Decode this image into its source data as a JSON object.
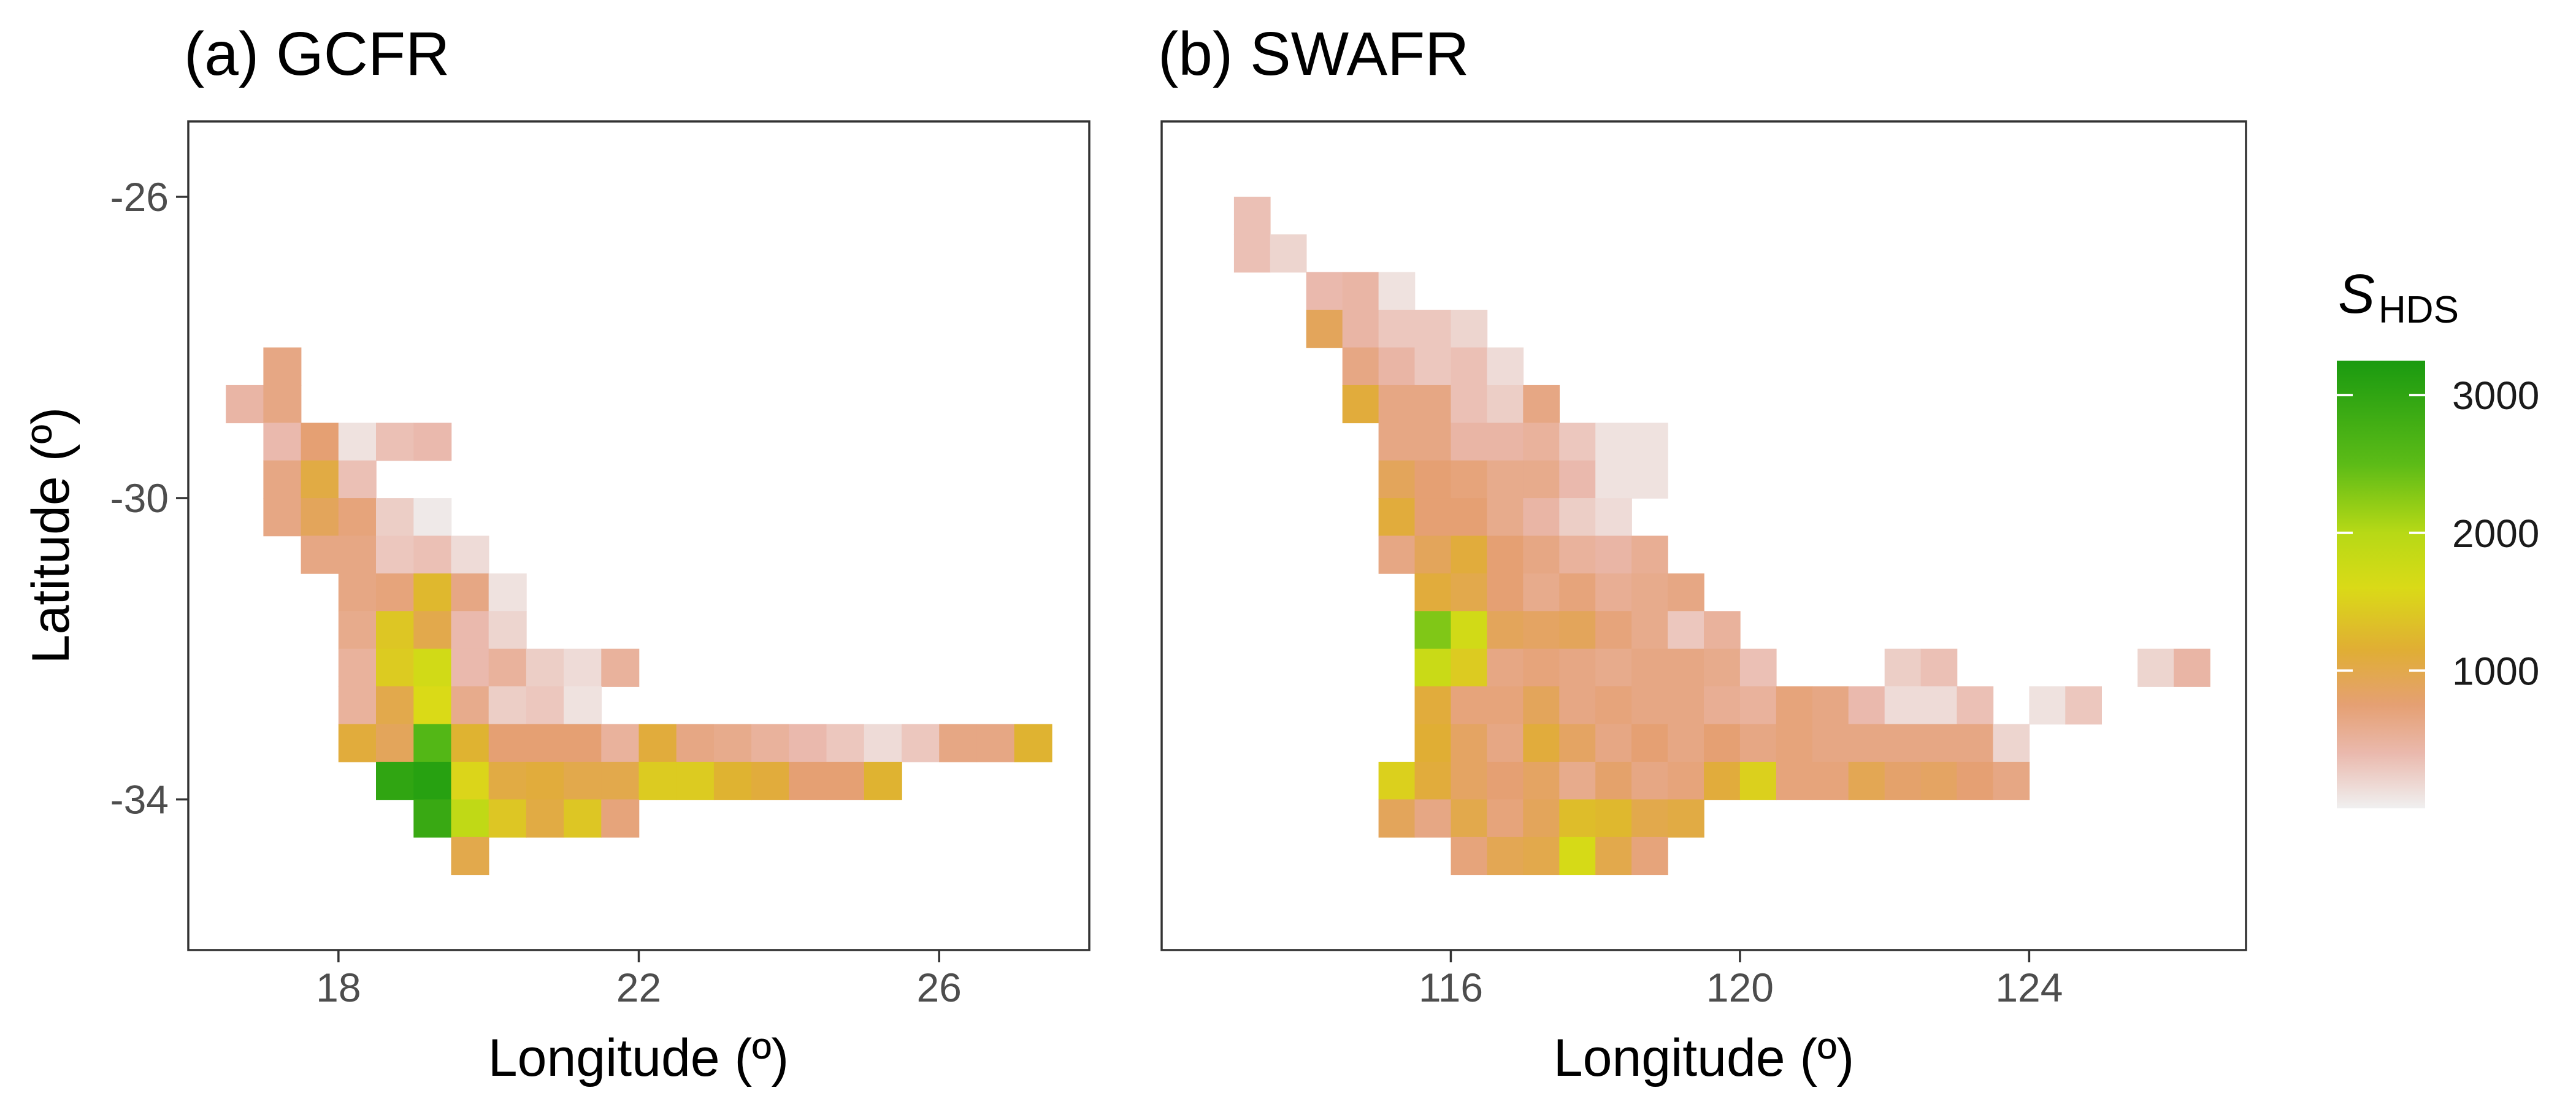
{
  "chart_data": [
    {
      "type": "heatmap",
      "title": "(a) GCFR",
      "xlabel": "Longitude (º)",
      "ylabel": "Latitude (º)",
      "xlim": [
        16.0,
        28.0
      ],
      "ylim": [
        -36.0,
        -25.0
      ],
      "xticks": [
        18,
        22,
        26
      ],
      "yticks": [
        -26,
        -30,
        -34
      ],
      "xtick_labels": [
        "18",
        "22",
        "26"
      ],
      "ytick_labels": [
        "-26",
        "-30",
        "-34"
      ],
      "grid": false,
      "cell_size_deg": 0.5,
      "cell_note": "each cell: [lon_min, lat_max, S_HDS] (0.5 degree squares)",
      "cells": [
        [
          17.0,
          -28.0,
          650
        ],
        [
          16.5,
          -28.5,
          450
        ],
        [
          17.0,
          -28.5,
          650
        ],
        [
          17.0,
          -29.0,
          400
        ],
        [
          17.5,
          -29.0,
          750
        ],
        [
          18.0,
          -29.0,
          100
        ],
        [
          18.5,
          -29.0,
          350
        ],
        [
          19.0,
          -29.0,
          400
        ],
        [
          17.0,
          -29.5,
          650
        ],
        [
          17.5,
          -29.5,
          1050
        ],
        [
          18.0,
          -29.5,
          350
        ],
        [
          17.0,
          -30.0,
          650
        ],
        [
          17.5,
          -30.0,
          900
        ],
        [
          18.0,
          -30.0,
          700
        ],
        [
          18.5,
          -30.0,
          250
        ],
        [
          19.0,
          -30.0,
          50
        ],
        [
          17.5,
          -30.5,
          650
        ],
        [
          18.0,
          -30.5,
          650
        ],
        [
          18.5,
          -30.5,
          300
        ],
        [
          19.0,
          -30.5,
          350
        ],
        [
          19.5,
          -30.5,
          150
        ],
        [
          18.0,
          -31.0,
          650
        ],
        [
          18.5,
          -31.0,
          700
        ],
        [
          19.0,
          -31.0,
          1250
        ],
        [
          19.5,
          -31.0,
          650
        ],
        [
          20.0,
          -31.0,
          100
        ],
        [
          18.0,
          -31.5,
          600
        ],
        [
          18.5,
          -31.5,
          1400
        ],
        [
          19.0,
          -31.5,
          1000
        ],
        [
          19.5,
          -31.5,
          400
        ],
        [
          20.0,
          -31.5,
          200
        ],
        [
          18.0,
          -32.0,
          500
        ],
        [
          18.5,
          -32.0,
          1450
        ],
        [
          19.0,
          -32.0,
          1700
        ],
        [
          19.5,
          -32.0,
          400
        ],
        [
          20.0,
          -32.0,
          500
        ],
        [
          20.5,
          -32.0,
          250
        ],
        [
          21.0,
          -32.0,
          150
        ],
        [
          21.5,
          -32.0,
          500
        ],
        [
          18.0,
          -32.5,
          500
        ],
        [
          18.5,
          -32.5,
          1000
        ],
        [
          19.0,
          -32.5,
          1600
        ],
        [
          19.5,
          -32.5,
          600
        ],
        [
          20.0,
          -32.5,
          250
        ],
        [
          20.5,
          -32.5,
          300
        ],
        [
          21.0,
          -32.5,
          100
        ],
        [
          18.0,
          -33.0,
          1100
        ],
        [
          18.5,
          -33.0,
          900
        ],
        [
          19.0,
          -33.0,
          2600
        ],
        [
          19.5,
          -33.0,
          1200
        ],
        [
          20.0,
          -33.0,
          750
        ],
        [
          20.5,
          -33.0,
          750
        ],
        [
          21.0,
          -33.0,
          750
        ],
        [
          21.5,
          -33.0,
          500
        ],
        [
          22.0,
          -33.0,
          1100
        ],
        [
          22.5,
          -33.0,
          650
        ],
        [
          23.0,
          -33.0,
          600
        ],
        [
          23.5,
          -33.0,
          500
        ],
        [
          24.0,
          -33.0,
          400
        ],
        [
          24.5,
          -33.0,
          300
        ],
        [
          25.0,
          -33.0,
          150
        ],
        [
          25.5,
          -33.0,
          300
        ],
        [
          26.0,
          -33.0,
          650
        ],
        [
          26.5,
          -33.0,
          650
        ],
        [
          27.0,
          -33.0,
          1200
        ],
        [
          18.5,
          -33.5,
          3000
        ],
        [
          19.0,
          -33.5,
          3100
        ],
        [
          19.5,
          -33.5,
          1550
        ],
        [
          20.0,
          -33.5,
          1050
        ],
        [
          20.5,
          -33.5,
          1100
        ],
        [
          21.0,
          -33.5,
          1000
        ],
        [
          21.5,
          -33.5,
          1000
        ],
        [
          22.0,
          -33.5,
          1450
        ],
        [
          22.5,
          -33.5,
          1450
        ],
        [
          23.0,
          -33.5,
          1200
        ],
        [
          23.5,
          -33.5,
          1100
        ],
        [
          24.0,
          -33.5,
          750
        ],
        [
          24.5,
          -33.5,
          750
        ],
        [
          25.0,
          -33.5,
          1200
        ],
        [
          19.0,
          -34.0,
          2900
        ],
        [
          19.5,
          -34.0,
          1900
        ],
        [
          20.0,
          -34.0,
          1400
        ],
        [
          20.5,
          -34.0,
          1050
        ],
        [
          21.0,
          -34.0,
          1400
        ],
        [
          21.5,
          -34.0,
          700
        ],
        [
          19.5,
          -34.5,
          1000
        ]
      ]
    },
    {
      "type": "heatmap",
      "title": "(b) SWAFR",
      "xlabel": "Longitude (º)",
      "ylabel": "",
      "xlim": [
        112.0,
        127.0
      ],
      "ylim": [
        -36.0,
        -25.0
      ],
      "xticks": [
        116,
        120,
        124
      ],
      "yticks": [],
      "xtick_labels": [
        "116",
        "120",
        "124"
      ],
      "ytick_labels": [],
      "grid": false,
      "cell_size_deg": 0.5,
      "cell_note": "each cell: [lon_min, lat_max, S_HDS] (0.5 degree squares)",
      "cells": [
        [
          113.0,
          -26.0,
          350
        ],
        [
          113.0,
          -26.5,
          350
        ],
        [
          113.5,
          -26.5,
          200
        ],
        [
          114.0,
          -27.0,
          400
        ],
        [
          114.5,
          -27.0,
          450
        ],
        [
          115.0,
          -27.0,
          100
        ],
        [
          114.0,
          -27.5,
          900
        ],
        [
          114.5,
          -27.5,
          450
        ],
        [
          115.0,
          -27.5,
          300
        ],
        [
          115.5,
          -27.5,
          300
        ],
        [
          116.0,
          -27.5,
          200
        ],
        [
          114.5,
          -28.0,
          650
        ],
        [
          115.0,
          -28.0,
          450
        ],
        [
          115.5,
          -28.0,
          300
        ],
        [
          116.0,
          -28.0,
          350
        ],
        [
          116.5,
          -28.0,
          150
        ],
        [
          114.5,
          -28.5,
          1100
        ],
        [
          115.0,
          -28.5,
          650
        ],
        [
          115.5,
          -28.5,
          650
        ],
        [
          116.0,
          -28.5,
          350
        ],
        [
          116.5,
          -28.5,
          250
        ],
        [
          117.0,
          -28.5,
          650
        ],
        [
          115.0,
          -29.0,
          650
        ],
        [
          115.5,
          -29.0,
          650
        ],
        [
          116.0,
          -29.0,
          450
        ],
        [
          116.5,
          -29.0,
          450
        ],
        [
          117.0,
          -29.0,
          500
        ],
        [
          117.5,
          -29.0,
          300
        ],
        [
          118.0,
          -29.0,
          100
        ],
        [
          118.5,
          -29.0,
          100
        ],
        [
          115.0,
          -29.5,
          900
        ],
        [
          115.5,
          -29.5,
          750
        ],
        [
          116.0,
          -29.5,
          700
        ],
        [
          116.5,
          -29.5,
          600
        ],
        [
          117.0,
          -29.5,
          600
        ],
        [
          117.5,
          -29.5,
          400
        ],
        [
          118.0,
          -29.5,
          100
        ],
        [
          118.5,
          -29.5,
          100
        ],
        [
          115.0,
          -30.0,
          1100
        ],
        [
          115.5,
          -30.0,
          750
        ],
        [
          116.0,
          -30.0,
          750
        ],
        [
          116.5,
          -30.0,
          600
        ],
        [
          117.0,
          -30.0,
          450
        ],
        [
          117.5,
          -30.0,
          250
        ],
        [
          118.0,
          -30.0,
          150
        ],
        [
          115.0,
          -30.5,
          650
        ],
        [
          115.5,
          -30.5,
          900
        ],
        [
          116.0,
          -30.5,
          1100
        ],
        [
          116.5,
          -30.5,
          750
        ],
        [
          117.0,
          -30.5,
          650
        ],
        [
          117.5,
          -30.5,
          500
        ],
        [
          118.0,
          -30.5,
          450
        ],
        [
          118.5,
          -30.5,
          550
        ],
        [
          115.5,
          -31.0,
          1100
        ],
        [
          116.0,
          -31.0,
          1000
        ],
        [
          116.5,
          -31.0,
          750
        ],
        [
          117.0,
          -31.0,
          600
        ],
        [
          117.5,
          -31.0,
          700
        ],
        [
          118.0,
          -31.0,
          550
        ],
        [
          118.5,
          -31.0,
          600
        ],
        [
          119.0,
          -31.0,
          650
        ],
        [
          115.5,
          -31.5,
          2300
        ],
        [
          116.0,
          -31.5,
          1700
        ],
        [
          116.5,
          -31.5,
          900
        ],
        [
          117.0,
          -31.5,
          850
        ],
        [
          117.5,
          -31.5,
          900
        ],
        [
          118.0,
          -31.5,
          700
        ],
        [
          118.5,
          -31.5,
          600
        ],
        [
          119.0,
          -31.5,
          300
        ],
        [
          119.5,
          -31.5,
          500
        ],
        [
          115.5,
          -32.0,
          1800
        ],
        [
          116.0,
          -32.0,
          1450
        ],
        [
          116.5,
          -32.0,
          650
        ],
        [
          117.0,
          -32.0,
          700
        ],
        [
          117.5,
          -32.0,
          650
        ],
        [
          118.0,
          -32.0,
          600
        ],
        [
          118.5,
          -32.0,
          650
        ],
        [
          119.0,
          -32.0,
          650
        ],
        [
          119.5,
          -32.0,
          600
        ],
        [
          120.0,
          -32.0,
          350
        ],
        [
          122.0,
          -32.0,
          250
        ],
        [
          122.5,
          -32.0,
          350
        ],
        [
          125.5,
          -32.0,
          200
        ],
        [
          126.0,
          -32.0,
          450
        ],
        [
          115.5,
          -32.5,
          1100
        ],
        [
          116.0,
          -32.5,
          700
        ],
        [
          116.5,
          -32.5,
          700
        ],
        [
          117.0,
          -32.5,
          900
        ],
        [
          117.5,
          -32.5,
          650
        ],
        [
          118.0,
          -32.5,
          700
        ],
        [
          118.5,
          -32.5,
          650
        ],
        [
          119.0,
          -32.5,
          650
        ],
        [
          119.5,
          -32.5,
          550
        ],
        [
          120.0,
          -32.5,
          500
        ],
        [
          120.5,
          -32.5,
          700
        ],
        [
          121.0,
          -32.5,
          650
        ],
        [
          121.5,
          -32.5,
          400
        ],
        [
          122.0,
          -32.5,
          150
        ],
        [
          122.5,
          -32.5,
          150
        ],
        [
          123.0,
          -32.5,
          350
        ],
        [
          124.0,
          -32.5,
          100
        ],
        [
          124.5,
          -32.5,
          300
        ],
        [
          115.5,
          -33.0,
          1150
        ],
        [
          116.0,
          -33.0,
          850
        ],
        [
          116.5,
          -33.0,
          650
        ],
        [
          117.0,
          -33.0,
          1100
        ],
        [
          117.5,
          -33.0,
          850
        ],
        [
          118.0,
          -33.0,
          650
        ],
        [
          118.5,
          -33.0,
          750
        ],
        [
          119.0,
          -33.0,
          650
        ],
        [
          119.5,
          -33.0,
          750
        ],
        [
          120.0,
          -33.0,
          650
        ],
        [
          120.5,
          -33.0,
          700
        ],
        [
          121.0,
          -33.0,
          650
        ],
        [
          121.5,
          -33.0,
          650
        ],
        [
          122.0,
          -33.0,
          650
        ],
        [
          122.5,
          -33.0,
          650
        ],
        [
          123.0,
          -33.0,
          650
        ],
        [
          123.5,
          -33.0,
          200
        ],
        [
          115.0,
          -33.5,
          1500
        ],
        [
          115.5,
          -33.5,
          1100
        ],
        [
          116.0,
          -33.5,
          850
        ],
        [
          116.5,
          -33.5,
          750
        ],
        [
          117.0,
          -33.5,
          850
        ],
        [
          117.5,
          -33.5,
          600
        ],
        [
          118.0,
          -33.5,
          800
        ],
        [
          118.5,
          -33.5,
          650
        ],
        [
          119.0,
          -33.5,
          700
        ],
        [
          119.5,
          -33.5,
          1100
        ],
        [
          120.0,
          -33.5,
          1500
        ],
        [
          120.5,
          -33.5,
          700
        ],
        [
          121.0,
          -33.5,
          700
        ],
        [
          121.5,
          -33.5,
          950
        ],
        [
          122.0,
          -33.5,
          800
        ],
        [
          122.5,
          -33.5,
          850
        ],
        [
          123.0,
          -33.5,
          750
        ],
        [
          123.5,
          -33.5,
          650
        ],
        [
          115.0,
          -34.0,
          900
        ],
        [
          115.5,
          -34.0,
          650
        ],
        [
          116.0,
          -34.0,
          1000
        ],
        [
          116.5,
          -34.0,
          700
        ],
        [
          117.0,
          -34.0,
          900
        ],
        [
          117.5,
          -34.0,
          1300
        ],
        [
          118.0,
          -34.0,
          1250
        ],
        [
          118.5,
          -34.0,
          1000
        ],
        [
          119.0,
          -34.0,
          1050
        ],
        [
          116.0,
          -34.5,
          700
        ],
        [
          116.5,
          -34.5,
          950
        ],
        [
          117.0,
          -34.5,
          1000
        ],
        [
          117.5,
          -34.5,
          1650
        ],
        [
          118.0,
          -34.5,
          1000
        ],
        [
          118.5,
          -34.5,
          700
        ]
      ]
    }
  ],
  "legend": {
    "title_main": "S",
    "title_subscript": "HDS",
    "ticks": [
      1000,
      2000,
      3000
    ],
    "tick_labels": [
      "1000",
      "2000",
      "3000"
    ],
    "range": [
      0,
      3250
    ],
    "gradient": [
      {
        "value": 0,
        "color": "#f0f0f0"
      },
      {
        "value": 400,
        "color": "#eab9ad"
      },
      {
        "value": 750,
        "color": "#e5a073"
      },
      {
        "value": 1150,
        "color": "#e0ae34"
      },
      {
        "value": 1600,
        "color": "#dada17"
      },
      {
        "value": 2000,
        "color": "#b7d916"
      },
      {
        "value": 2500,
        "color": "#5cbb17"
      },
      {
        "value": 3250,
        "color": "#1a9a10"
      }
    ]
  }
}
